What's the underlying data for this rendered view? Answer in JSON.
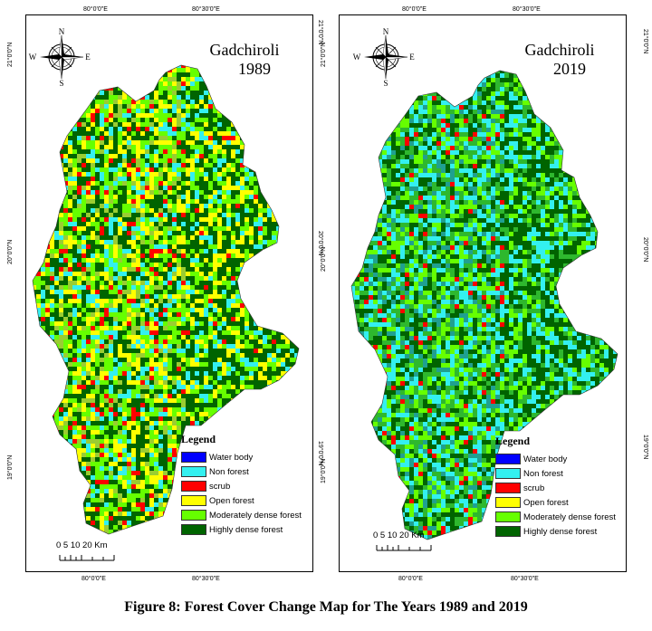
{
  "caption": "Figure 8: Forest Cover Change Map for The Years 1989 and 2019",
  "graticule": {
    "lon_labels": [
      "80°0'0\"E",
      "80°30'0\"E"
    ],
    "lat_labels": [
      "21°0'0\"N",
      "20°0'0\"N",
      "19°0'0\"N"
    ]
  },
  "compass": {
    "n": "N",
    "s": "S",
    "e": "E",
    "w": "W"
  },
  "legend": {
    "title": "Legend",
    "items": [
      {
        "label": "Water body",
        "color": "#0000ff"
      },
      {
        "label": "Non forest",
        "color": "#33f0f0"
      },
      {
        "label": "scrub",
        "color": "#ff0000"
      },
      {
        "label": "Open forest",
        "color": "#ffff00"
      },
      {
        "label": "Moderately dense forest",
        "color": "#66ff00"
      },
      {
        "label": "Highly dense forest",
        "color": "#006400"
      }
    ]
  },
  "scale": {
    "label": "0  5 10    20 Km"
  },
  "maps": [
    {
      "place": "Gadchiroli",
      "year": "1989"
    },
    {
      "place": "Gadchiroli",
      "year": "2019"
    }
  ]
}
